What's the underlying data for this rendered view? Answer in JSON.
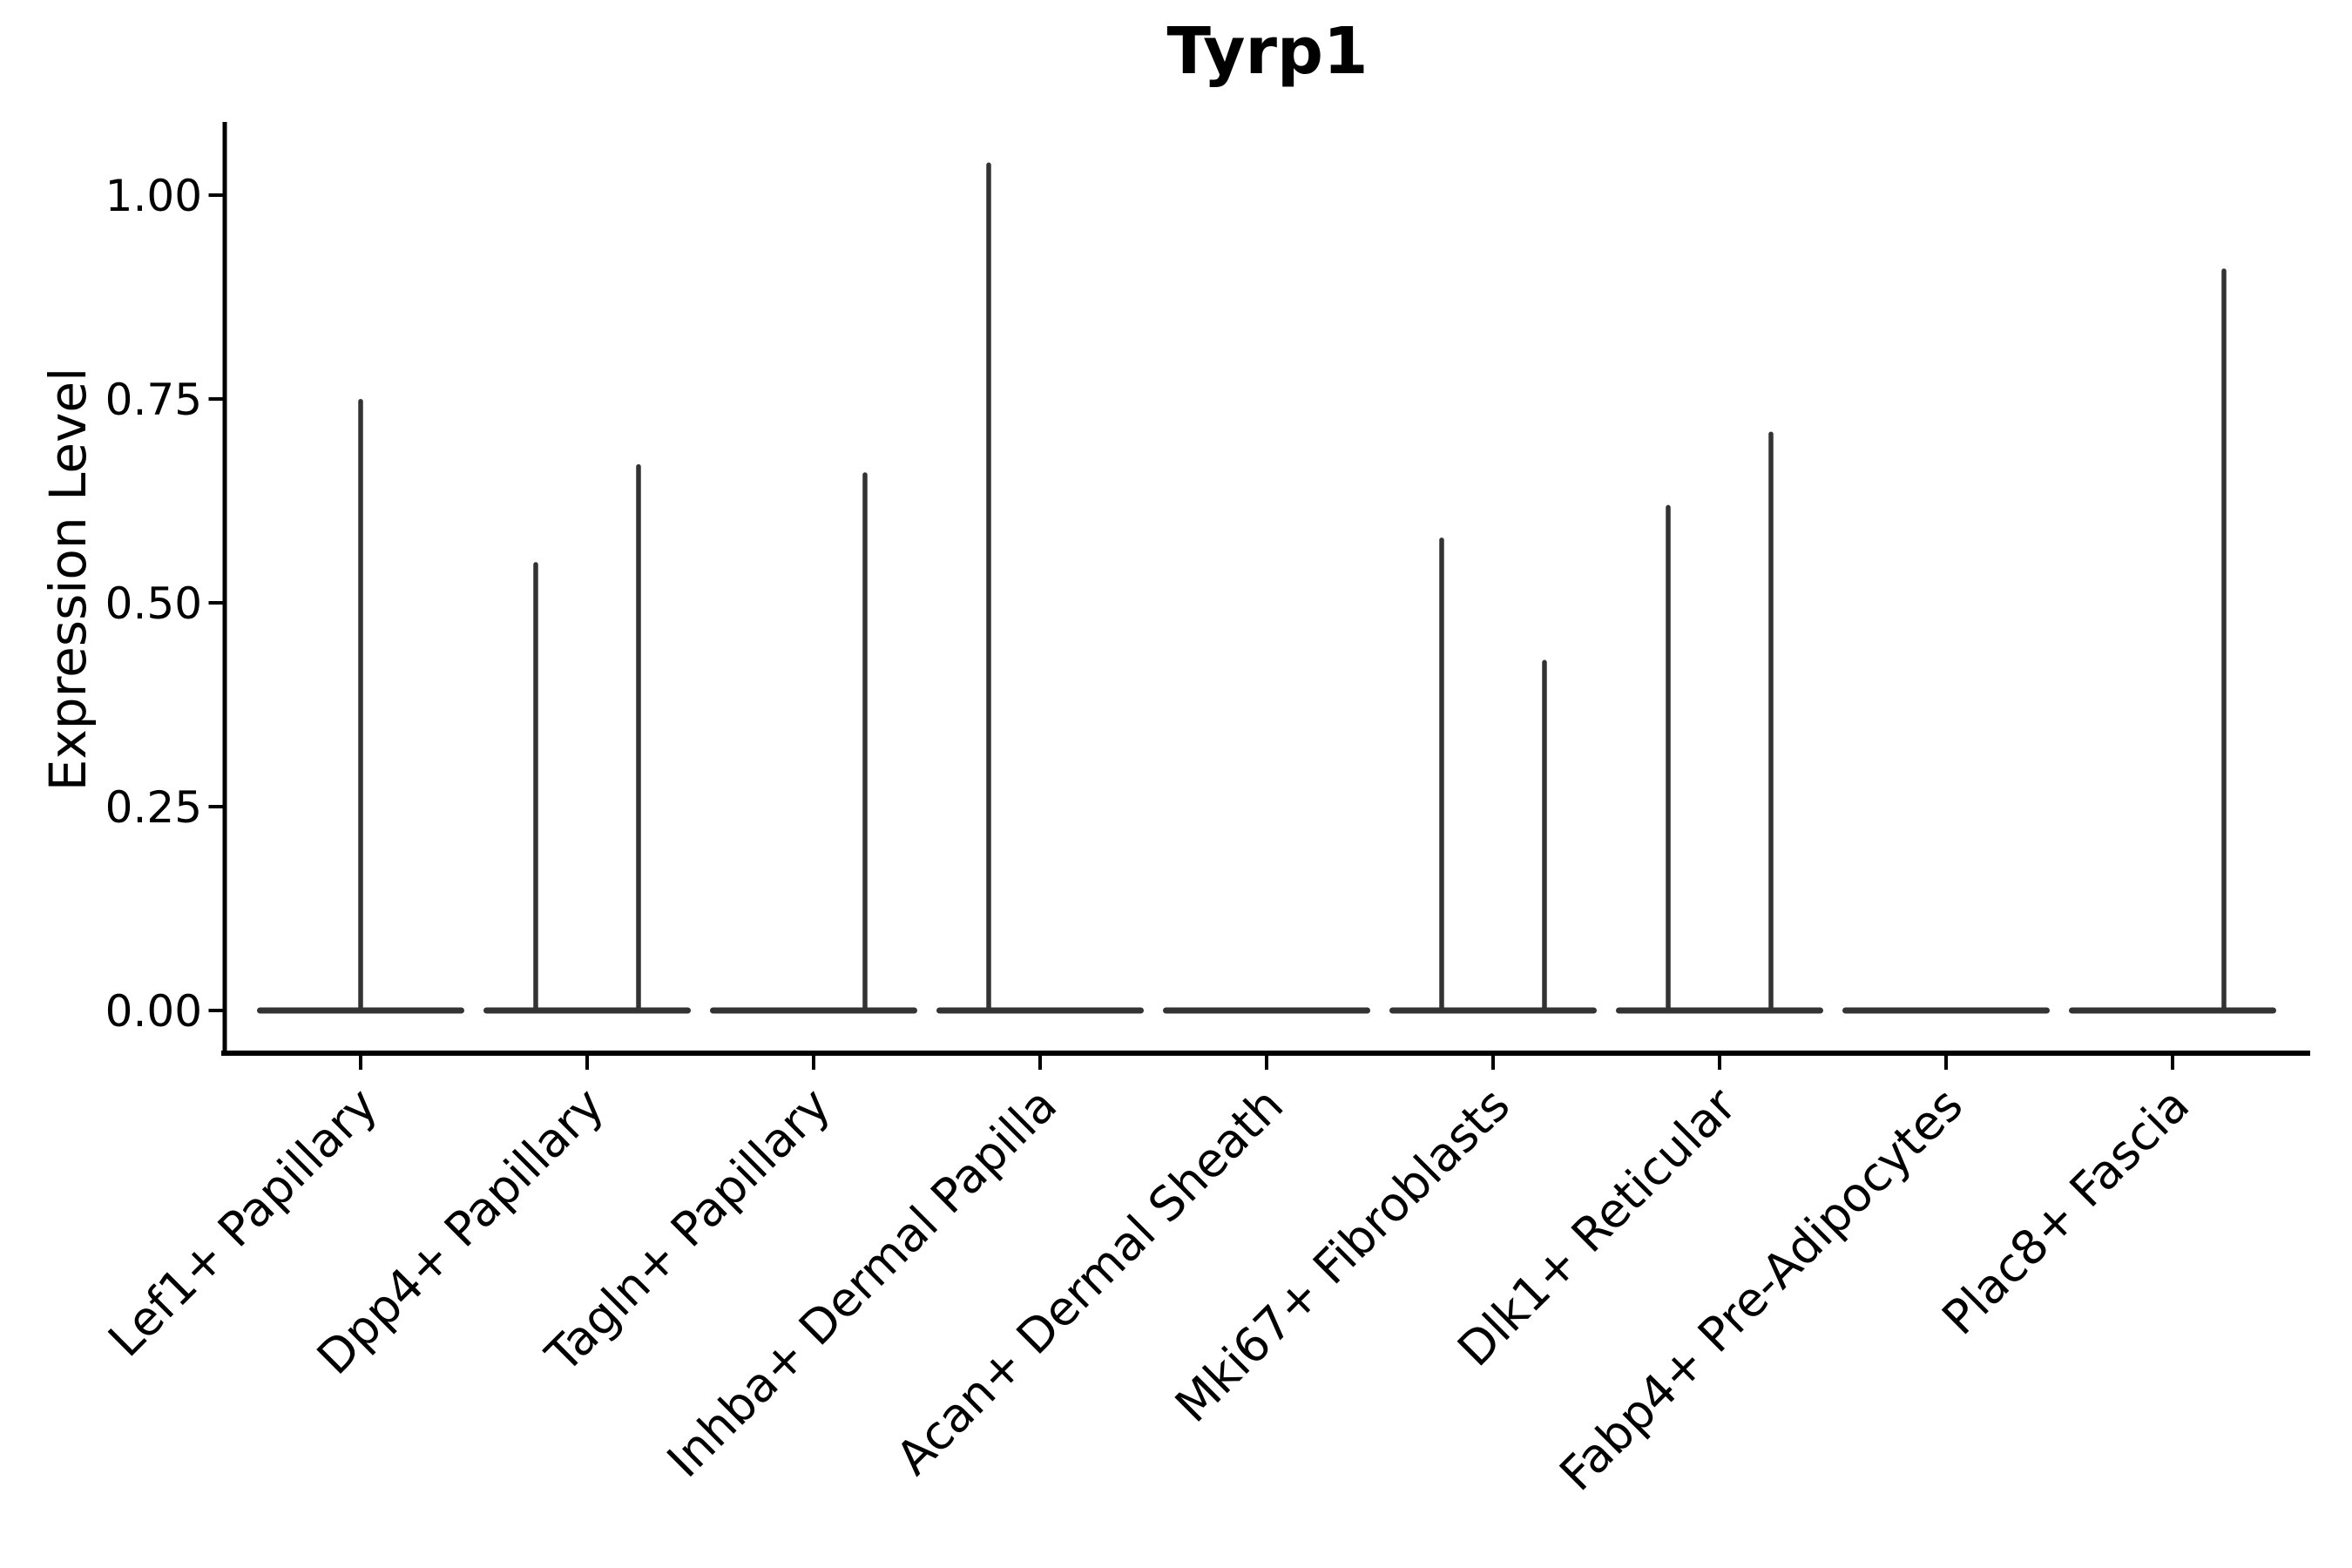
{
  "title": "Tyrp1",
  "y_axis": {
    "label": "Expression Level"
  },
  "chart_data": {
    "type": "violin",
    "title": "Tyrp1",
    "xlabel": "",
    "ylabel": "Expression Level",
    "ylim": [
      0,
      1.09
    ],
    "yticks": [
      0,
      0.25,
      0.5,
      0.75,
      1.0
    ],
    "ytick_labels": [
      "0.00",
      "0.25",
      "0.50",
      "0.75",
      "1.00"
    ],
    "grid": false,
    "legend_position": "none",
    "categories": [
      "Lef1+ Papillary",
      "Dpp4+ Papillary",
      "Tagln+ Papillary",
      "Inhba+ Dermal Papilla",
      "Acan+ Dermal Sheath",
      "Mki67+ Fibroblasts",
      "Dlk1+ Reticular",
      "Fabp4+ Pre-Adipocytes",
      "Plac8+ Fascia"
    ],
    "violins": [
      {
        "category": "Lef1+ Papillary",
        "groups": [
          {
            "position": "full",
            "peak": 0.75
          }
        ]
      },
      {
        "category": "Dpp4+ Papillary",
        "groups": [
          {
            "position": "left",
            "peak": 0.55
          },
          {
            "position": "right",
            "peak": 0.67
          }
        ]
      },
      {
        "category": "Tagln+ Papillary",
        "groups": [
          {
            "position": "left",
            "peak": 0
          },
          {
            "position": "right",
            "peak": 0.66
          }
        ]
      },
      {
        "category": "Inhba+ Dermal Papilla",
        "groups": [
          {
            "position": "left",
            "peak": 1.04
          },
          {
            "position": "right",
            "peak": 0
          }
        ]
      },
      {
        "category": "Acan+ Dermal Sheath",
        "groups": [
          {
            "position": "full",
            "peak": 0
          }
        ]
      },
      {
        "category": "Mki67+ Fibroblasts",
        "groups": [
          {
            "position": "left",
            "peak": 0.58
          },
          {
            "position": "right",
            "peak": 0.43
          }
        ]
      },
      {
        "category": "Dlk1+ Reticular",
        "groups": [
          {
            "position": "left",
            "peak": 0.62
          },
          {
            "position": "right",
            "peak": 0.71
          }
        ]
      },
      {
        "category": "Fabp4+ Pre-Adipocytes",
        "groups": [
          {
            "position": "full",
            "peak": 0
          }
        ]
      },
      {
        "category": "Plac8+ Fascia",
        "groups": [
          {
            "position": "left",
            "peak": 0
          },
          {
            "position": "right",
            "peak": 0.91
          }
        ]
      }
    ],
    "colors": {
      "violin_line": "#333333",
      "axis": "#000000",
      "background": "#ffffff"
    }
  }
}
